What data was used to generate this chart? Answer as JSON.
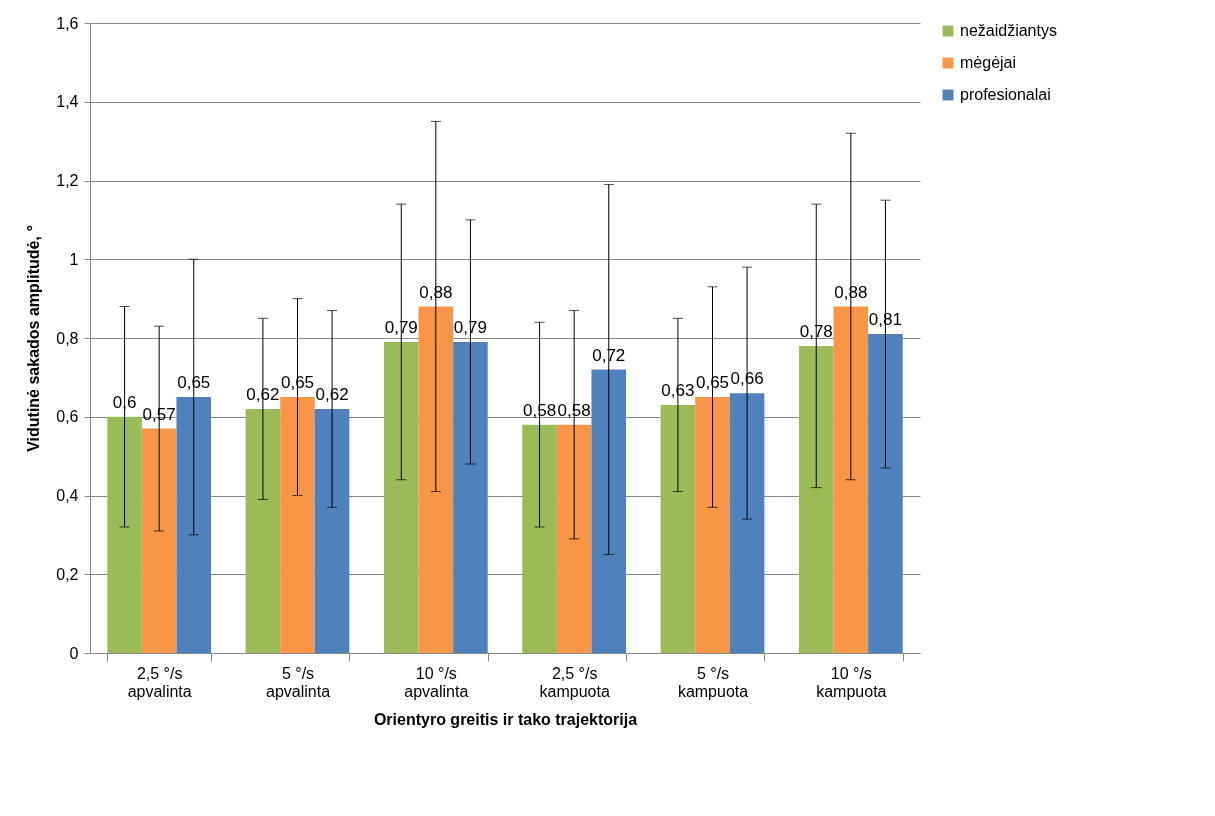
{
  "chart_data": {
    "type": "bar",
    "xlabel": "Orientyro greitis ir tako trajektorija",
    "ylabel": "Vidutinė sakados amplitudė, °",
    "categories": [
      "2,5 °/s apvalinta",
      "5 °/s apvalinta",
      "10 °/s apvalinta",
      "2,5 °/s kampuota",
      "5 °/s kampuota",
      "10 °/s kampuota"
    ],
    "series": [
      {
        "name": "nežaidžiantys",
        "color": "#9bbb59",
        "values": [
          0.6,
          0.62,
          0.79,
          0.58,
          0.63,
          0.78
        ],
        "errors": [
          0.28,
          0.23,
          0.35,
          0.26,
          0.22,
          0.36
        ],
        "value_labels": [
          "0,6",
          "0,62",
          "0,79",
          "0,58",
          "0,63",
          "0,78"
        ]
      },
      {
        "name": "mėgėjai",
        "color": "#f79646",
        "values": [
          0.57,
          0.65,
          0.88,
          0.58,
          0.65,
          0.88
        ],
        "errors": [
          0.26,
          0.25,
          0.47,
          0.29,
          0.28,
          0.44
        ],
        "value_labels": [
          "0,57",
          "0,65",
          "0,88",
          "0,58",
          "0,65",
          "0,88"
        ]
      },
      {
        "name": "profesionalai",
        "color": "#4f81bd",
        "values": [
          0.65,
          0.62,
          0.79,
          0.72,
          0.66,
          0.81
        ],
        "errors": [
          0.35,
          0.25,
          0.31,
          0.47,
          0.32,
          0.34
        ],
        "value_labels": [
          "0,65",
          "0,62",
          "0,79",
          "0,72",
          "0,66",
          "0,81"
        ]
      }
    ],
    "ylim": [
      0,
      1.6
    ],
    "yticks": [
      0,
      {
        "value": 0.2,
        "label": "0,2"
      },
      {
        "value": 0.4,
        "label": "0,4"
      },
      {
        "value": 0.6,
        "label": "0,6"
      },
      {
        "value": 0.8,
        "label": "0,8"
      },
      1,
      {
        "value": 1.2,
        "label": "1,2"
      },
      {
        "value": 1.4,
        "label": "1,4"
      },
      {
        "value": 1.6,
        "label": "1,6"
      }
    ],
    "grid": "y",
    "legend": "right"
  }
}
